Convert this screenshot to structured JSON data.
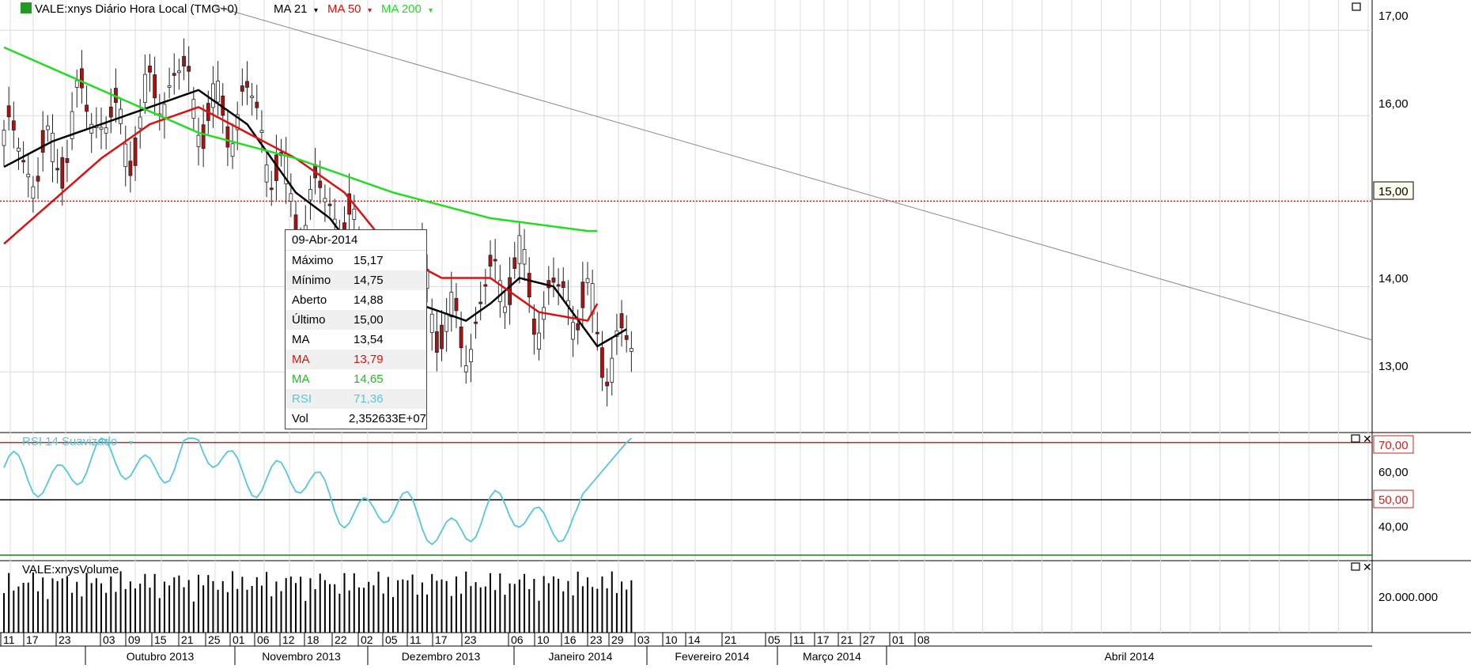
{
  "header": {
    "symbol_title": "VALE:xnys Diário Hora Local (TMG+0)",
    "ma21_label": "MA 21",
    "ma50_label": "MA 50",
    "ma200_label": "MA 200",
    "colors": {
      "ma21": "#000000",
      "ma50": "#dd1111",
      "ma200": "#22dd22",
      "rsi": "#55c8d8"
    }
  },
  "rsi_panel": {
    "title": "RSI 14 Suavizado"
  },
  "volume_panel": {
    "title": "VALE:xnysVolume"
  },
  "price_axis": {
    "ticks": [
      "17,00",
      "16,00",
      "15,00",
      "14,00",
      "13,00"
    ],
    "current_badge": "15,00"
  },
  "rsi_axis": {
    "ticks": [
      "70,00",
      "60,00",
      "50,00",
      "40,00"
    ]
  },
  "volume_axis": {
    "ticks": [
      "20.000.000"
    ]
  },
  "date_axis": {
    "day_labels": [
      "11",
      "17",
      "23",
      "03",
      "09",
      "15",
      "21",
      "25",
      "01",
      "06",
      "12",
      "18",
      "22",
      "02",
      "05",
      "11",
      "17",
      "23",
      "06",
      "10",
      "16",
      "23",
      "29",
      "03",
      "10",
      "14",
      "21",
      "05",
      "11",
      "17",
      "21",
      "27",
      "01",
      "08"
    ],
    "month_labels": [
      "Outubro 2013",
      "Novembro 2013",
      "Dezembro 2013",
      "Janeiro 2014",
      "Fevereiro 2014",
      "Março 2014",
      "Abril 2014"
    ]
  },
  "legend": {
    "date": "09-Abr-2014",
    "rows": [
      {
        "k": "Máximo",
        "v": "15,17",
        "color": "#000000"
      },
      {
        "k": "Mínimo",
        "v": "14,75",
        "color": "#000000"
      },
      {
        "k": "Aberto",
        "v": "14,88",
        "color": "#000000"
      },
      {
        "k": "Último",
        "v": "15,00",
        "color": "#000000"
      },
      {
        "k": "MA",
        "v": "13,54",
        "color": "#000000"
      },
      {
        "k": "MA",
        "v": "13,79",
        "color": "#dd1111"
      },
      {
        "k": "MA",
        "v": "14,65",
        "color": "#22bb22"
      },
      {
        "k": "RSI",
        "v": "71,36",
        "color": "#55c8d8"
      },
      {
        "k": "Vol",
        "v": "2,352633E+07",
        "color": "#000000"
      }
    ]
  },
  "chart_data": {
    "type": "candlestick",
    "title": "VALE:xnys Diário Hora Local (TMG+0)",
    "price_range": [
      12.3,
      17.15
    ],
    "current_price_line": 15.0,
    "series": [
      {
        "name": "MA 21",
        "x": [
          0,
          10,
          20,
          30,
          40,
          50,
          60,
          67,
          75,
          85,
          95,
          100,
          106,
          113,
          122,
          128
        ],
        "values": [
          15.4,
          15.7,
          15.9,
          16.1,
          16.3,
          15.9,
          15.1,
          14.8,
          14.2,
          13.8,
          13.6,
          13.8,
          14.1,
          14.0,
          13.3,
          13.5
        ]
      },
      {
        "name": "MA 50",
        "x": [
          0,
          10,
          20,
          30,
          40,
          50,
          60,
          70,
          80,
          90,
          100,
          110,
          120,
          122
        ],
        "values": [
          14.5,
          15.0,
          15.5,
          15.9,
          16.1,
          15.8,
          15.5,
          15.1,
          14.4,
          14.1,
          14.1,
          13.7,
          13.6,
          13.8
        ]
      },
      {
        "name": "MA 200",
        "x": [
          0,
          20,
          40,
          60,
          80,
          100,
          120,
          122
        ],
        "values": [
          16.8,
          16.3,
          15.8,
          15.5,
          15.1,
          14.8,
          14.65,
          14.65
        ]
      }
    ],
    "rsi": {
      "name": "RSI 14 Suavizado",
      "levels": [
        70,
        50
      ],
      "range": [
        29,
        71
      ],
      "last": 71.36
    },
    "volume": {
      "name": "VALE:xnysVolume",
      "last": 23526330
    }
  }
}
